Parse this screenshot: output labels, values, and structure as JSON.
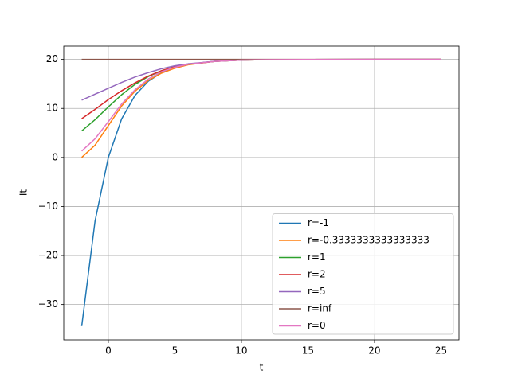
{
  "chart_data": {
    "type": "line",
    "xlabel": "t",
    "ylabel": "It",
    "x": [
      -2,
      -1,
      0,
      1,
      2,
      3,
      4,
      5,
      6,
      8,
      10,
      12,
      15,
      20,
      25
    ],
    "series": [
      {
        "name": "r=-1",
        "color": "#1f77b4",
        "values": [
          -34.4,
          -13.0,
          0,
          7.87,
          12.64,
          15.54,
          17.29,
          18.36,
          19.0,
          19.63,
          19.87,
          19.95,
          19.99,
          20,
          20
        ]
      },
      {
        "name": "r=-0.3333333333333333",
        "color": "#ff7f0e",
        "values": [
          0,
          2.5,
          6.5,
          10.5,
          13.5,
          15.7,
          17.2,
          18.2,
          18.9,
          19.6,
          19.86,
          19.95,
          19.99,
          20,
          20
        ]
      },
      {
        "name": "r=1",
        "color": "#2ca02c",
        "values": [
          5.4,
          7.7,
          10.3,
          12.8,
          14.9,
          16.5,
          17.7,
          18.5,
          19.0,
          19.6,
          19.85,
          19.95,
          19.99,
          20,
          20
        ]
      },
      {
        "name": "r=2",
        "color": "#d62728",
        "values": [
          7.9,
          9.8,
          11.8,
          13.6,
          15.2,
          16.6,
          17.7,
          18.5,
          19.0,
          19.6,
          19.86,
          19.95,
          19.99,
          20,
          20
        ]
      },
      {
        "name": "r=5",
        "color": "#9467bd",
        "values": [
          11.7,
          12.9,
          14.1,
          15.3,
          16.4,
          17.3,
          18.1,
          18.7,
          19.1,
          19.6,
          19.86,
          19.95,
          19.99,
          20,
          20
        ]
      },
      {
        "name": "r=inf",
        "color": "#8c564b",
        "values": [
          20,
          20,
          20,
          20,
          20,
          20,
          20,
          20,
          20,
          20,
          20,
          20,
          20,
          20,
          20
        ]
      },
      {
        "name": "r=0",
        "color": "#e377c2",
        "values": [
          1.3,
          3.8,
          7.3,
          10.9,
          13.8,
          16.0,
          17.5,
          18.4,
          19.0,
          19.6,
          19.86,
          19.95,
          19.99,
          20,
          20
        ]
      }
    ],
    "xlim": [
      -3.35,
      26.35
    ],
    "ylim": [
      -37.2,
      22.7
    ],
    "xticks": [
      0,
      5,
      10,
      15,
      20,
      25
    ],
    "yticks": [
      {
        "value": -30,
        "label": "−30"
      },
      {
        "value": -20,
        "label": "−20"
      },
      {
        "value": -10,
        "label": "−10"
      },
      0,
      10,
      20
    ],
    "grid": true,
    "legend": "lower right"
  }
}
